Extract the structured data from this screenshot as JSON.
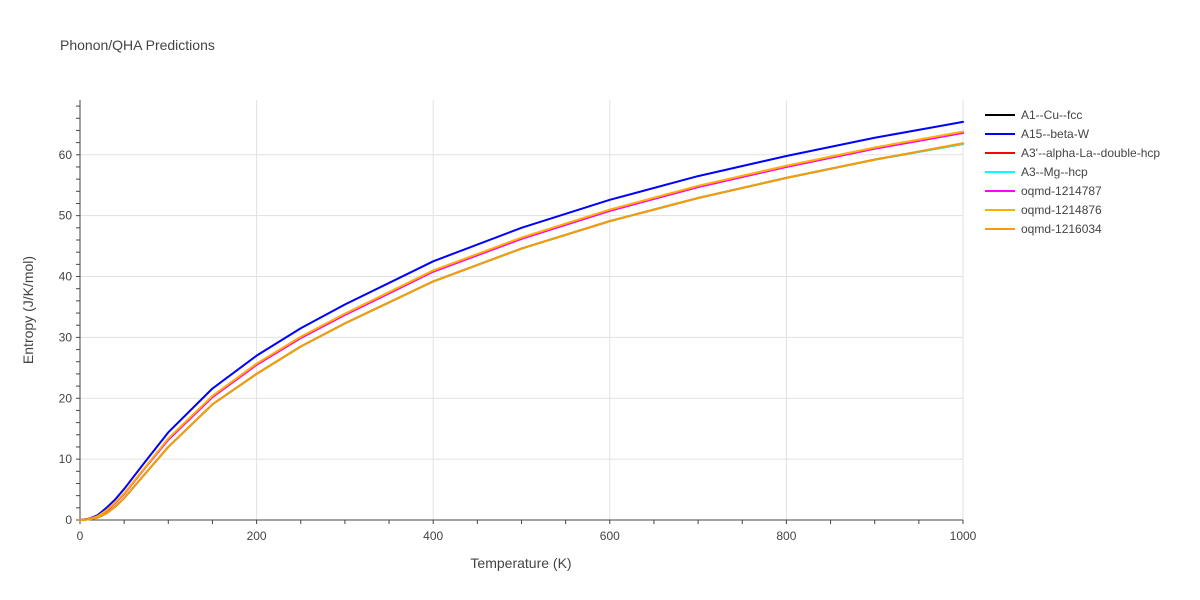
{
  "chart_data": {
    "type": "line",
    "title": "Phonon/QHA Predictions",
    "xlabel": "Temperature (K)",
    "ylabel": "Entropy (J/K/mol)",
    "xlim": [
      0,
      1000
    ],
    "ylim": [
      0,
      69
    ],
    "x_ticks": [
      0,
      200,
      400,
      600,
      800,
      1000
    ],
    "y_ticks": [
      0,
      10,
      20,
      30,
      40,
      50,
      60
    ],
    "grid": true,
    "legend_position": "right",
    "x": [
      0,
      10,
      20,
      30,
      40,
      50,
      75,
      100,
      150,
      200,
      250,
      300,
      400,
      500,
      600,
      700,
      800,
      900,
      1000
    ],
    "series": [
      {
        "name": "A1--Cu--fcc",
        "color": "#000000",
        "values": [
          0,
          0.1,
          0.4,
          1.1,
          2.2,
          3.6,
          7.8,
          12.0,
          19.0,
          24.0,
          28.5,
          32.3,
          39.2,
          44.6,
          49.1,
          52.9,
          56.2,
          59.2,
          61.8
        ]
      },
      {
        "name": "A15--beta-W",
        "color": "#0000ff",
        "values": [
          0,
          0.2,
          0.8,
          2.0,
          3.4,
          5.1,
          9.8,
          14.4,
          21.6,
          27.0,
          31.5,
          35.4,
          42.5,
          48.0,
          52.6,
          56.5,
          59.8,
          62.8,
          65.4
        ]
      },
      {
        "name": "A3'--alpha-La--double-hcp",
        "color": "#ff0000",
        "values": [
          0,
          0.15,
          0.6,
          1.5,
          2.8,
          4.3,
          8.8,
          13.2,
          20.2,
          25.5,
          29.9,
          33.7,
          40.8,
          46.2,
          50.8,
          54.7,
          58.0,
          61.0,
          63.6
        ]
      },
      {
        "name": "A3--Mg--hcp",
        "color": "#00ffff",
        "values": [
          0,
          0.1,
          0.4,
          1.1,
          2.2,
          3.6,
          7.8,
          12.0,
          19.0,
          24.0,
          28.5,
          32.3,
          39.2,
          44.6,
          49.1,
          52.9,
          56.2,
          59.2,
          61.8
        ]
      },
      {
        "name": "oqmd-1214787",
        "color": "#ff00ff",
        "values": [
          0,
          0.15,
          0.6,
          1.5,
          2.8,
          4.3,
          8.8,
          13.2,
          20.2,
          25.5,
          29.9,
          33.7,
          40.8,
          46.2,
          50.8,
          54.7,
          58.0,
          61.0,
          63.6
        ]
      },
      {
        "name": "oqmd-1214876",
        "color": "#ffb000",
        "values": [
          0,
          0.15,
          0.6,
          1.6,
          2.9,
          4.4,
          8.9,
          13.4,
          20.4,
          25.7,
          30.1,
          33.9,
          41.0,
          46.4,
          51.0,
          54.9,
          58.2,
          61.2,
          63.8
        ]
      },
      {
        "name": "oqmd-1216034",
        "color": "#ff9900",
        "values": [
          0,
          0.1,
          0.4,
          1.1,
          2.2,
          3.6,
          7.8,
          12.0,
          19.0,
          24.0,
          28.5,
          32.3,
          39.2,
          44.6,
          49.1,
          52.9,
          56.2,
          59.2,
          61.9
        ]
      }
    ]
  }
}
